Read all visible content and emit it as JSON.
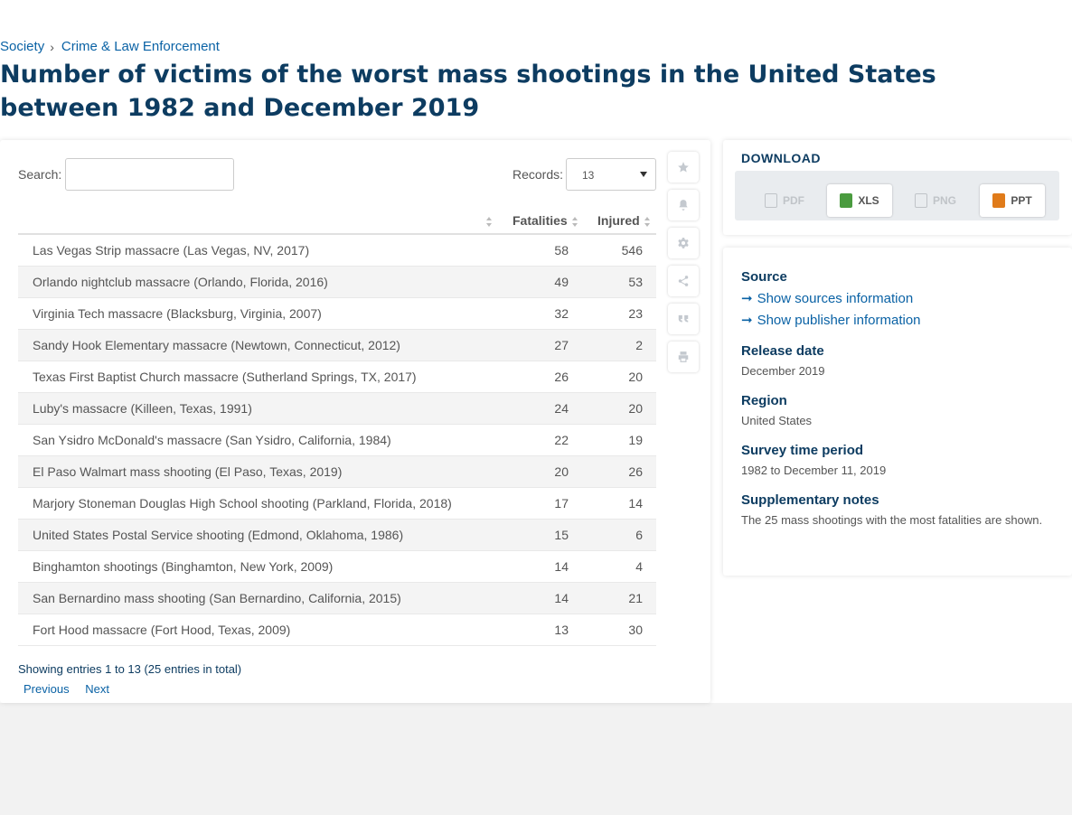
{
  "breadcrumb": {
    "items": [
      "Society",
      "Crime & Law Enforcement"
    ],
    "separator": "›"
  },
  "title": "Number of victims of the worst mass shootings in the United States between 1982 and December 2019",
  "controls": {
    "search_label": "Search:",
    "search_value": "",
    "records_label": "Records:",
    "records_value": "13"
  },
  "table": {
    "headers": {
      "name": "",
      "fatalities": "Fatalities",
      "injured": "Injured"
    },
    "rows": [
      {
        "name": "Las Vegas Strip massacre (Las Vegas, NV, 2017)",
        "fatalities": "58",
        "injured": "546"
      },
      {
        "name": "Orlando nightclub massacre (Orlando, Florida, 2016)",
        "fatalities": "49",
        "injured": "53"
      },
      {
        "name": "Virginia Tech massacre (Blacksburg, Virginia, 2007)",
        "fatalities": "32",
        "injured": "23"
      },
      {
        "name": "Sandy Hook Elementary massacre (Newtown, Connecticut, 2012)",
        "fatalities": "27",
        "injured": "2"
      },
      {
        "name": "Texas First Baptist Church massacre (Sutherland Springs, TX, 2017)",
        "fatalities": "26",
        "injured": "20"
      },
      {
        "name": "Luby's massacre (Killeen, Texas, 1991)",
        "fatalities": "24",
        "injured": "20"
      },
      {
        "name": "San Ysidro McDonald's massacre (San Ysidro, California, 1984)",
        "fatalities": "22",
        "injured": "19"
      },
      {
        "name": "El Paso Walmart mass shooting (El Paso, Texas, 2019)",
        "fatalities": "20",
        "injured": "26"
      },
      {
        "name": "Marjory Stoneman Douglas High School shooting (Parkland, Florida, 2018)",
        "fatalities": "17",
        "injured": "14"
      },
      {
        "name": "United States Postal Service shooting (Edmond, Oklahoma, 1986)",
        "fatalities": "15",
        "injured": "6"
      },
      {
        "name": "Binghamton shootings (Binghamton, New York, 2009)",
        "fatalities": "14",
        "injured": "4"
      },
      {
        "name": "San Bernardino mass shooting (San Bernardino, California, 2015)",
        "fatalities": "14",
        "injured": "21"
      },
      {
        "name": "Fort Hood massacre (Fort Hood, Texas, 2009)",
        "fatalities": "13",
        "injured": "30"
      }
    ]
  },
  "pagination": {
    "showing": "Showing entries 1 to 13 (25 entries in total)",
    "previous": "Previous",
    "next": "Next"
  },
  "toolbar": {
    "icons": [
      "star-icon",
      "bell-icon",
      "gear-icon",
      "share-icon",
      "quote-icon",
      "print-icon"
    ]
  },
  "download": {
    "title": "DOWNLOAD",
    "buttons": [
      {
        "label": "PDF",
        "enabled": false,
        "color": "#c0c4c8"
      },
      {
        "label": "XLS",
        "enabled": true,
        "color": "#4a9b3f"
      },
      {
        "label": "PNG",
        "enabled": false,
        "color": "#c0c4c8"
      },
      {
        "label": "PPT",
        "enabled": true,
        "color": "#e07b1a"
      }
    ]
  },
  "info": {
    "source_heading": "Source",
    "show_sources": "Show sources information",
    "show_publisher": "Show publisher information",
    "release_heading": "Release date",
    "release_value": "December 2019",
    "region_heading": "Region",
    "region_value": "United States",
    "survey_heading": "Survey time period",
    "survey_value": "1982 to December 11, 2019",
    "notes_heading": "Supplementary notes",
    "notes_value": "The 25 mass shootings with the most fatalities are shown."
  },
  "colors": {
    "title": "#0d3c61",
    "link": "#0a62a5",
    "row_alt": "#f4f4f4"
  }
}
